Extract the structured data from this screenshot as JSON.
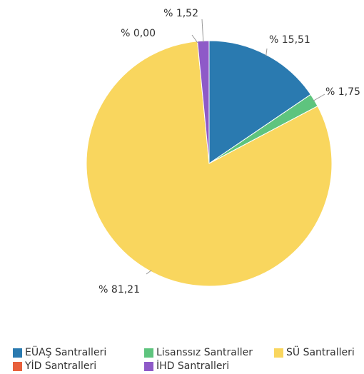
{
  "chart_data": {
    "type": "pie",
    "slices": [
      {
        "name": "EÜAŞ Santralleri",
        "value": 15.51,
        "label": "% 15,51",
        "color": "#2a7ab0"
      },
      {
        "name": "Lisanssız Santraller",
        "value": 1.75,
        "label": "% 1,75",
        "color": "#5ec47e"
      },
      {
        "name": "SÜ Santralleri",
        "value": 81.21,
        "label": "% 81,21",
        "color": "#f9d65e"
      },
      {
        "name": "YİD Santralleri",
        "value": 0.0,
        "label": "% 0,00",
        "color": "#e8603c"
      },
      {
        "name": "İHD Santralleri",
        "value": 1.52,
        "label": "% 1,52",
        "color": "#8e5ac8"
      }
    ],
    "legend_position": "bottom"
  },
  "legend": {
    "items": [
      {
        "label": "EÜAŞ Santralleri",
        "color": "#2a7ab0"
      },
      {
        "label": "Lisanssız Santraller",
        "color": "#5ec47e"
      },
      {
        "label": "SÜ Santralleri",
        "color": "#f9d65e"
      },
      {
        "label": "YİD Santralleri",
        "color": "#e8603c"
      },
      {
        "label": "İHD Santralleri",
        "color": "#8e5ac8"
      }
    ]
  }
}
